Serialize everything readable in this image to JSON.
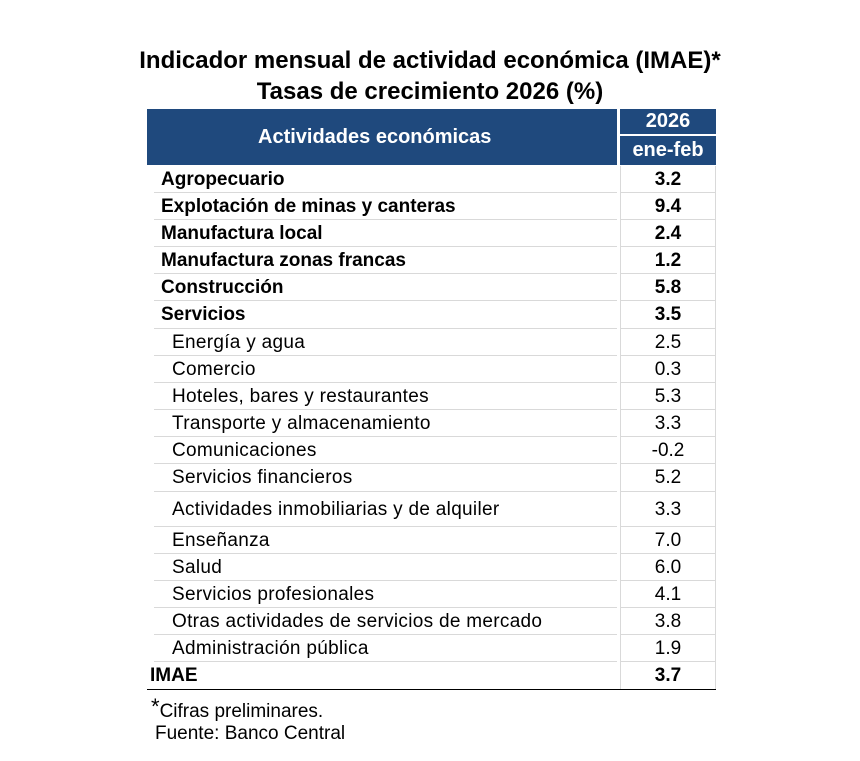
{
  "title": {
    "line1": "Indicador mensual de actividad económica (IMAE)*",
    "line2": "Tasas de crecimiento 2026 (%)"
  },
  "header": {
    "activities": "Actividades económicas",
    "year": "2026",
    "period": "ene-feb"
  },
  "rows": [
    {
      "label": "Agropecuario",
      "value": "3.2"
    },
    {
      "label": "Explotación de minas y canteras",
      "value": "9.4"
    },
    {
      "label": "Manufactura local",
      "value": "2.4"
    },
    {
      "label": "Manufactura zonas francas",
      "value": "1.2"
    },
    {
      "label": "Construcción",
      "value": "5.8"
    },
    {
      "label": "Servicios",
      "value": "3.5"
    },
    {
      "label": "Energía y agua",
      "value": "2.5"
    },
    {
      "label": "Comercio",
      "value": "0.3"
    },
    {
      "label": "Hoteles, bares y restaurantes",
      "value": "5.3"
    },
    {
      "label": "Transporte y almacenamiento",
      "value": "3.3"
    },
    {
      "label": "Comunicaciones",
      "value": "-0.2"
    },
    {
      "label": "Servicios financieros",
      "value": "5.2"
    },
    {
      "label": "Actividades inmobiliarias y de alquiler",
      "value": "3.3"
    },
    {
      "label": "Enseñanza",
      "value": "7.0"
    },
    {
      "label": "Salud",
      "value": "6.0"
    },
    {
      "label": "Servicios profesionales",
      "value": "4.1"
    },
    {
      "label": "Otras actividades de servicios de mercado",
      "value": "3.8"
    },
    {
      "label": "Administración pública",
      "value": "1.9"
    },
    {
      "label": "IMAE",
      "value": "3.7"
    }
  ],
  "footnotes": {
    "star": "*",
    "preliminary": "Cifras preliminares.",
    "source": "Fuente: Banco Central"
  }
}
